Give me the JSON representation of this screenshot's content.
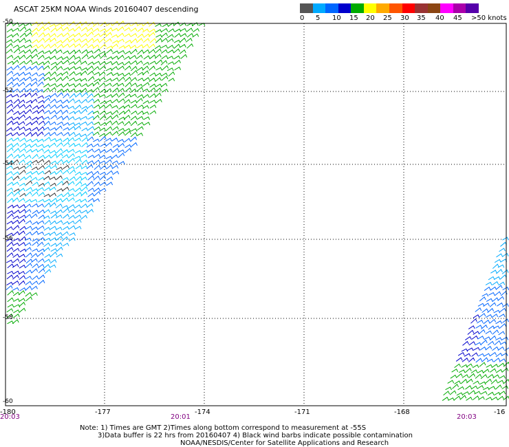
{
  "title": "ASCAT 25KM NOAA Winds 20160407 descending",
  "colorbar": {
    "colors": [
      "#555555",
      "#00aaff",
      "#0066ff",
      "#0000cc",
      "#00aa00",
      "#ffff00",
      "#ffaa00",
      "#ff5500",
      "#ff0000",
      "#993333",
      "#8b4513",
      "#ff00ff",
      "#aa00aa",
      "#5500aa"
    ],
    "labels": [
      "0",
      "5",
      "10",
      "15",
      "20",
      "25",
      "30",
      "35",
      "40",
      "45",
      ">50 knots"
    ]
  },
  "map": {
    "lat_labels": [
      "-50",
      "-52",
      "-54",
      "-56",
      "-58",
      "-60"
    ],
    "lon_labels": [
      "-180",
      "-177",
      "-174",
      "-171",
      "-168",
      "-16"
    ],
    "times": [
      "20:03",
      "20:01",
      "20:03"
    ]
  },
  "notes": [
    "Note: 1) Times are GMT 2)Times along bottom correspond to measurement at -55S",
    "3)Data buffer is 22 hrs from 20160407 4) Black wind barbs indicate possible contamination",
    "NOAA/NESDIS/Center for Satellite Applications and Research"
  ]
}
